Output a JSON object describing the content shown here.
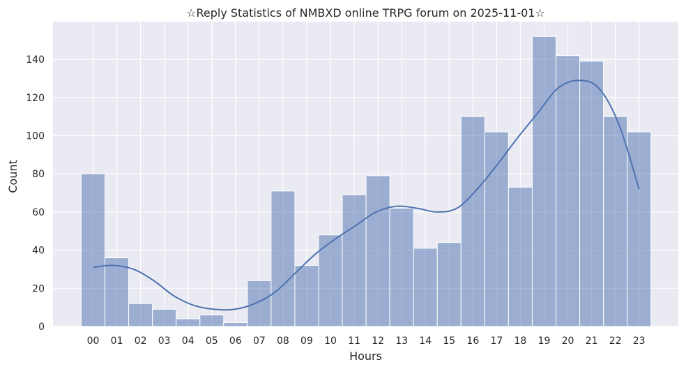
{
  "chart_data": {
    "type": "bar",
    "title": "☆Reply Statistics of NMBXD online TRPG forum on 2025-11-01☆",
    "xlabel": "Hours",
    "ylabel": "Count",
    "categories": [
      "00",
      "01",
      "02",
      "03",
      "04",
      "05",
      "06",
      "07",
      "08",
      "09",
      "10",
      "11",
      "12",
      "13",
      "14",
      "15",
      "16",
      "17",
      "18",
      "19",
      "20",
      "21",
      "22",
      "23"
    ],
    "values": [
      80,
      36,
      12,
      9,
      4,
      6,
      2,
      24,
      71,
      32,
      48,
      69,
      79,
      62,
      41,
      44,
      110,
      102,
      73,
      152,
      142,
      139,
      110,
      102
    ],
    "kde": [
      31,
      32,
      30,
      24,
      16,
      11,
      9,
      9,
      12,
      18,
      28,
      38,
      46,
      53,
      60,
      63,
      62,
      60,
      62,
      72,
      85,
      99,
      112,
      125,
      129,
      125,
      106,
      72
    ],
    "ylim": [
      0,
      160
    ],
    "yticks": [
      0,
      20,
      40,
      60,
      80,
      100,
      120,
      140
    ],
    "grid": true,
    "colors": {
      "background": "#eaeaf2",
      "grid": "#ffffff",
      "bar_fill": "#4c72b0",
      "bar_stroke": "#ffffff",
      "kde_line": "#4c72b0",
      "text": "#262626"
    }
  }
}
